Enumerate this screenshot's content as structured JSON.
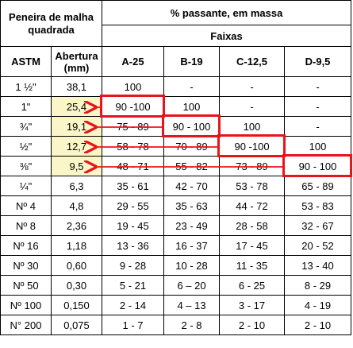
{
  "header": {
    "sieve_title": "Peneira de malha quadrada",
    "passing_title": "% passante, em massa",
    "bands_title": "Faixas",
    "col_astm": "ASTM",
    "col_opening": "Abertura (mm)",
    "bands": [
      "A-25",
      "B-19",
      "C-12,5",
      "D-9,5"
    ]
  },
  "rows": [
    {
      "astm": "1 ½\"",
      "opening": "38,1",
      "a": "100",
      "b": "-",
      "c": "-",
      "d": "-"
    },
    {
      "astm": "1\"",
      "opening": "25,4",
      "a": "90 -100",
      "b": "100",
      "c": "-",
      "d": "-"
    },
    {
      "astm": "¾\"",
      "opening": "19,1",
      "a": "75 - 89",
      "b": "90 - 100",
      "c": "100",
      "d": "-"
    },
    {
      "astm": "½\"",
      "opening": "12,7",
      "a": "58 - 78",
      "b": "70 - 89",
      "c": "90 -100",
      "d": "100"
    },
    {
      "astm": "⅜\"",
      "opening": "9,5",
      "a": "48 - 71",
      "b": "55 - 82",
      "c": "73 - 89",
      "d": "90 - 100"
    },
    {
      "astm": "¼\"",
      "opening": "6,3",
      "a": "35 - 61",
      "b": "42 - 70",
      "c": "53 - 78",
      "d": "65 - 89"
    },
    {
      "astm": "Nº 4",
      "opening": "4,8",
      "a": "29 - 55",
      "b": "35 - 63",
      "c": "44 - 72",
      "d": "53 - 83"
    },
    {
      "astm": "Nº 8",
      "opening": "2,36",
      "a": "19 - 45",
      "b": "23 - 49",
      "c": "28 - 58",
      "d": "32 - 67"
    },
    {
      "astm": "Nº 16",
      "opening": "1,18",
      "a": "13 - 36",
      "b": "16 - 37",
      "c": "17 - 45",
      "d": "20 - 52"
    },
    {
      "astm": "Nº 30",
      "opening": "0,60",
      "a": "9 - 28",
      "b": "10 - 28",
      "c": "11 - 35",
      "d": "13 - 40"
    },
    {
      "astm": "Nº 50",
      "opening": "0,30",
      "a": "5 - 21",
      "b": "6 – 20",
      "c": "6 - 25",
      "d": "8 - 29"
    },
    {
      "astm": "Nº 100",
      "opening": "0,150",
      "a": "2 - 14",
      "b": "4 – 13",
      "c": "3 - 17",
      "d": "4 - 19"
    },
    {
      "astm": "N° 200",
      "opening": "0,075",
      "a": "1 - 7",
      "b": "2 - 8",
      "c": "2 - 10",
      "d": "2 - 10"
    }
  ],
  "colors": {
    "highlight": "#fbf6c8",
    "annotation": "#e8141b"
  }
}
